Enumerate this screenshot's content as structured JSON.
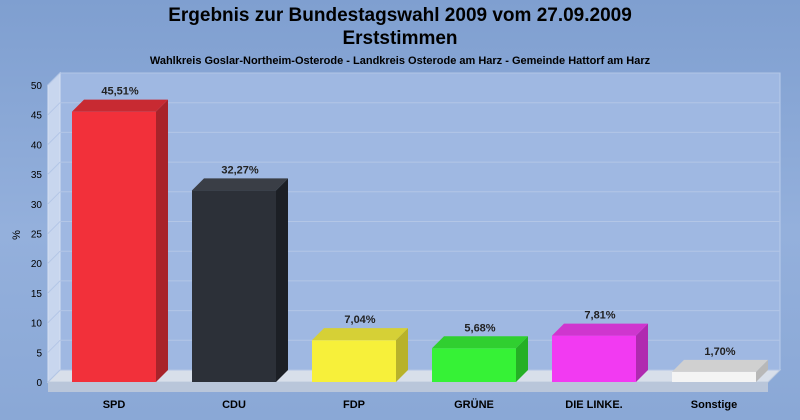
{
  "chart_data": {
    "type": "bar",
    "title": "Ergebnis zur Bundestagswahl 2009 vom 27.09.2009",
    "title2": "Erststimmen",
    "subtitle": "Wahlkreis Goslar-Northeim-Osterode - Landkreis Osterode am Harz - Gemeinde Hattorf am Harz",
    "ylabel": "%",
    "ylim": [
      0,
      50
    ],
    "yticks": [
      0,
      5,
      10,
      15,
      20,
      25,
      30,
      35,
      40,
      45,
      50
    ],
    "grid": true,
    "categories": [
      "SPD",
      "CDU",
      "FDP",
      "GRÜNE",
      "DIE LINKE.",
      "Sonstige"
    ],
    "values": [
      45.51,
      32.27,
      7.04,
      5.68,
      7.81,
      1.7
    ],
    "value_labels": [
      "45,51%",
      "32,27%",
      "7,04%",
      "5,68%",
      "7,81%",
      "1,70%"
    ],
    "colors": [
      "#f2303a",
      "#2c3038",
      "#f7f03a",
      "#36f236",
      "#f23af2",
      "#f4f4f4"
    ],
    "side_colors": [
      "#a8232a",
      "#1c1f25",
      "#b8b22a",
      "#25b025",
      "#b02ab0",
      "#b8b8b8"
    ],
    "top_colors": [
      "#c82a32",
      "#3a3e46",
      "#d6d036",
      "#30cf30",
      "#cf36cf",
      "#d0d0d0"
    ]
  }
}
